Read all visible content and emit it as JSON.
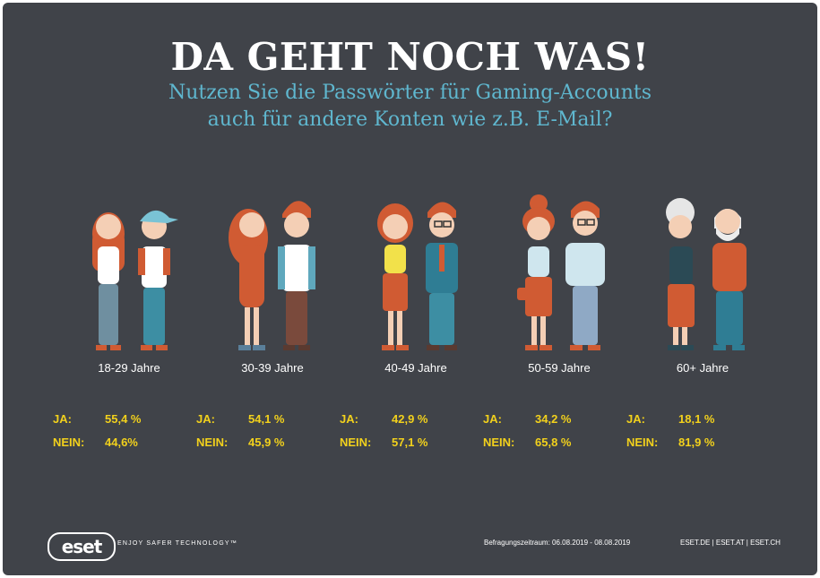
{
  "header": {
    "title": "DA GEHT NOCH WAS!",
    "subtitle_line1": "Nutzen Sie die Passwörter für Gaming-Accounts",
    "subtitle_line2": "auch für andere Konten wie z.B. E-Mail?"
  },
  "labels": {
    "yes": "JA:",
    "no": "NEIN:"
  },
  "groups": [
    {
      "age": "18-29 Jahre",
      "ja": "55,4 %",
      "nein": "44,6%"
    },
    {
      "age": "30-39 Jahre",
      "ja": "54,1 %",
      "nein": "45,9 %"
    },
    {
      "age": "40-49 Jahre",
      "ja": "42,9 %",
      "nein": "57,1 %"
    },
    {
      "age": "50-59 Jahre",
      "ja": "34,2 %",
      "nein": "65,8 %"
    },
    {
      "age": "60+ Jahre",
      "ja": "18,1 %",
      "nein": "81,9 %"
    }
  ],
  "footer": {
    "logo": "eset",
    "tagline": "ENJOY SAFER TECHNOLOGY™",
    "period": "Befragungszeitraum: 06.08.2019 - 08.08.2019",
    "links": "ESET.DE | ESET.AT | ESET.CH"
  },
  "colors": {
    "background": "#404349",
    "title": "#ffffff",
    "subtitle": "#5fb7cf",
    "stat": "#f2d11c",
    "skin": "#f4cfb5",
    "hair": "#d05b33"
  }
}
